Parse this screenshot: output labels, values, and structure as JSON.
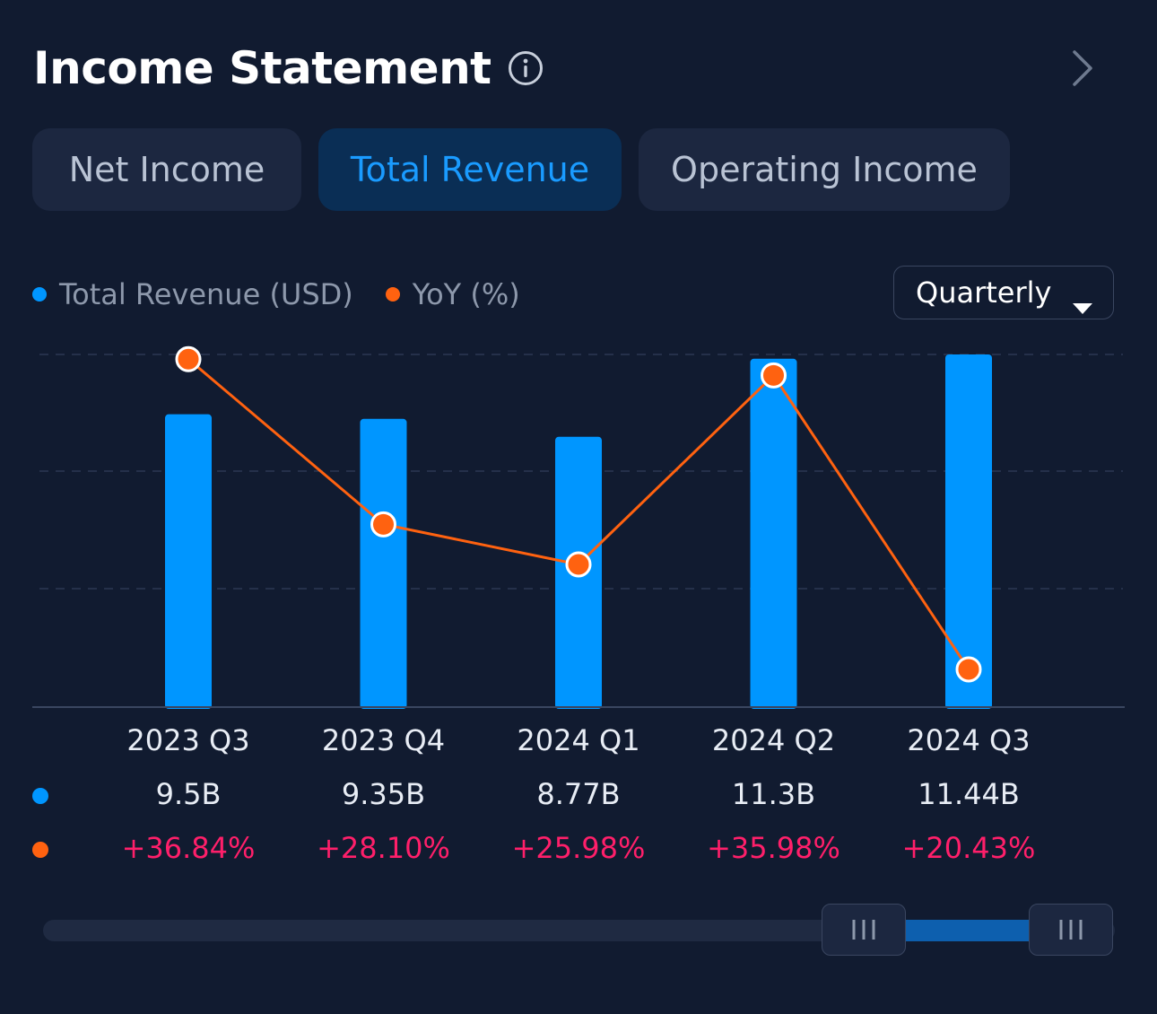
{
  "header": {
    "title": "Income Statement"
  },
  "tabs": [
    {
      "label": "Net Income"
    },
    {
      "label": "Total Revenue"
    },
    {
      "label": "Operating Income"
    }
  ],
  "legend": {
    "revenue": "Total Revenue (USD)",
    "yoy": "YoY (%)"
  },
  "period_select": {
    "value": "Quarterly"
  },
  "colors": {
    "revenue": "#0096ff",
    "yoy": "#ff6210",
    "positive": "#ff1f6a",
    "active_tab": "#1a9bff"
  },
  "chart_data": {
    "type": "bar",
    "categories": [
      "2023 Q3",
      "2023 Q4",
      "2024 Q1",
      "2024 Q2",
      "2024 Q3"
    ],
    "series": [
      {
        "name": "Total Revenue (USD)",
        "type": "bar",
        "values": [
          9.5,
          9.35,
          8.77,
          11.3,
          11.44
        ],
        "labels": [
          "9.5B",
          "9.35B",
          "8.77B",
          "11.3B",
          "11.44B"
        ]
      },
      {
        "name": "YoY (%)",
        "type": "line",
        "values": [
          36.84,
          28.1,
          25.98,
          35.98,
          20.43
        ],
        "labels": [
          "+36.84%",
          "+28.10%",
          "+25.98%",
          "+35.98%",
          "+20.43%"
        ]
      }
    ],
    "grid": true
  }
}
